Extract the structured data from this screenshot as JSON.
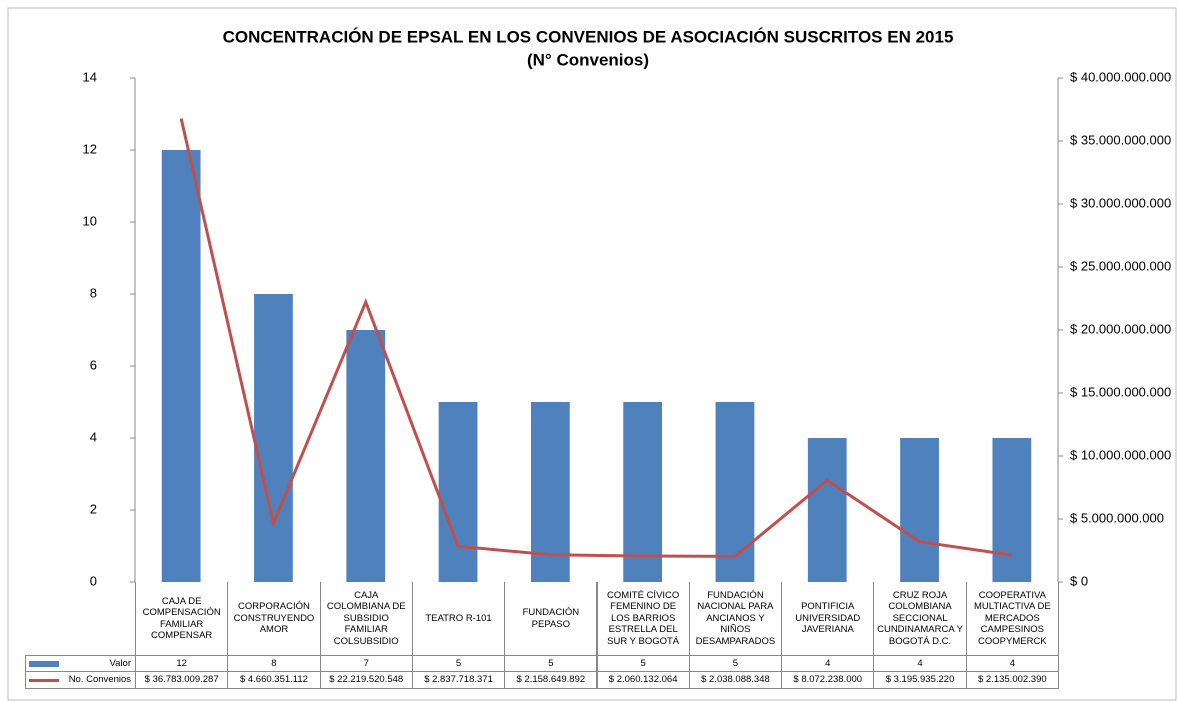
{
  "chart_data": {
    "type": "bar-line",
    "title": "CONCENTRACIÓN DE  EPSAL EN LOS CONVENIOS DE ASOCIACIÓN SUSCRITOS EN 2015",
    "subtitle": "(N° Convenios)",
    "categories": [
      "CAJA DE COMPENSACIÓN FAMILIAR COMPENSAR",
      "CORPORACIÓN CONSTRUYENDO AMOR",
      "CAJA COLOMBIANA DE SUBSIDIO FAMILIAR COLSUBSIDIO",
      "TEATRO R-101",
      "FUNDACIÓN PEPASO",
      "COMITÉ CÍVICO FEMENINO DE LOS BARRIOS ESTRELLA DEL SUR Y BOGOTÁ",
      "FUNDACIÓN NACIONAL PARA ANCIANOS Y NIÑOS DESAMPARADOS",
      "PONTIFICIA UNIVERSIDAD JAVERIANA",
      "CRUZ ROJA COLOMBIANA SECCIONAL CUNDINAMARCA Y BOGOTÁ D.C.",
      "COOPERATIVA MULTIACTIVA DE MERCADOS CAMPESINOS COOPYMERCK"
    ],
    "series": [
      {
        "name": "Valor",
        "color": "#4f81bd",
        "kind": "bar",
        "values": [
          12,
          8,
          7,
          5,
          5,
          5,
          5,
          4,
          4,
          4
        ]
      },
      {
        "name": "No. Convenios",
        "color": "#c0504d",
        "kind": "line",
        "axis": "y2",
        "values": [
          36783009287,
          4660351112,
          22219520548,
          2837718371,
          2158649892,
          2060132064,
          2038088348,
          8072238000,
          3195935220,
          2135002390
        ],
        "value_labels": [
          "$ 36.783.009.287",
          "$ 4.660.351.112",
          "$ 22.219.520.548",
          "$ 2.837.718.371",
          "$ 2.158.649.892",
          "$ 2.060.132.064",
          "$ 2.038.088.348",
          "$ 8.072.238.000",
          "$ 3.195.935.220",
          "$ 2.135.002.390"
        ]
      }
    ],
    "ylim": [
      0,
      14
    ],
    "yticks": [
      0,
      2,
      4,
      6,
      8,
      10,
      12,
      14
    ],
    "y2lim": [
      0,
      40000000000
    ],
    "y2ticks": [
      {
        "value": 0,
        "label": "$ 0"
      },
      {
        "value": 5000000000,
        "label": "$ 5.000.000.000"
      },
      {
        "value": 10000000000,
        "label": "$ 10.000.000.000"
      },
      {
        "value": 15000000000,
        "label": "$ 15.000.000.000"
      },
      {
        "value": 20000000000,
        "label": "$ 20.000.000.000"
      },
      {
        "value": 25000000000,
        "label": "$ 25.000.000.000"
      },
      {
        "value": 30000000000,
        "label": "$ 30.000.000.000"
      },
      {
        "value": 35000000000,
        "label": "$ 35.000.000.000"
      },
      {
        "value": 40000000000,
        "label": "$ 40.000.000.000"
      }
    ]
  }
}
